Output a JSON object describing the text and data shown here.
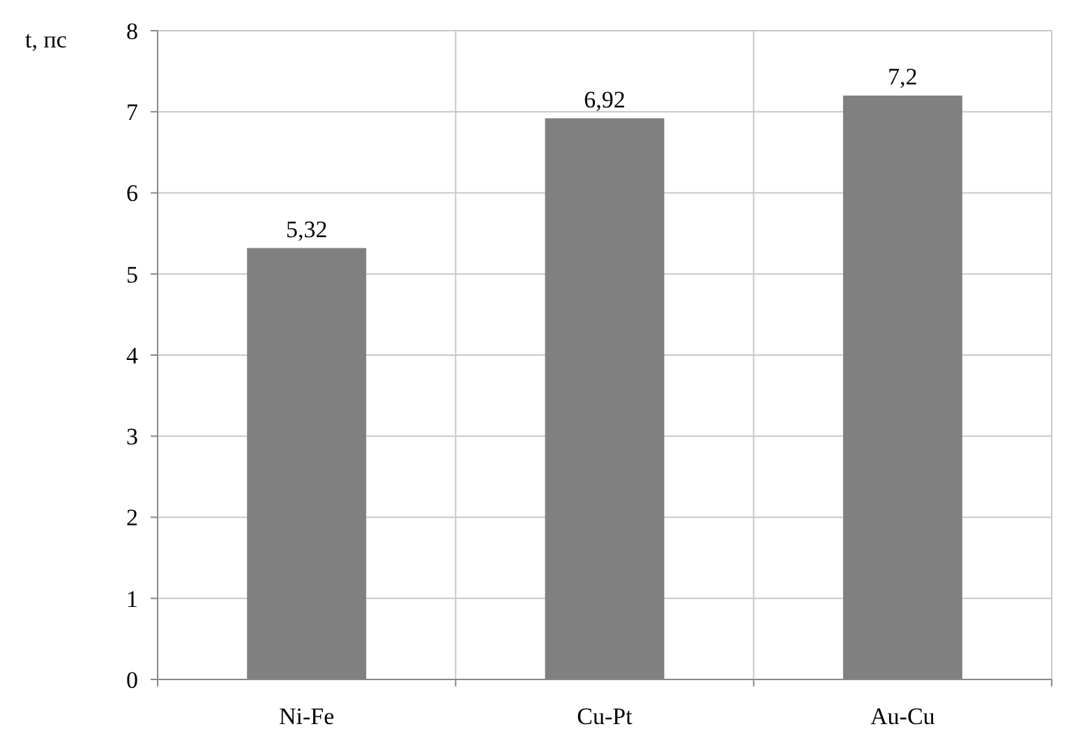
{
  "chart_data": {
    "type": "bar",
    "ylabel": "t, пс",
    "categories": [
      "Ni-Fe",
      "Cu-Pt",
      "Au-Cu"
    ],
    "values": [
      5.32,
      6.92,
      7.2
    ],
    "value_labels": [
      "5,32",
      "6,92",
      "7,2"
    ],
    "color": "#808080",
    "ylim": [
      0,
      8
    ],
    "yticks": [
      0,
      1,
      2,
      3,
      4,
      5,
      6,
      7,
      8
    ],
    "grid": true
  }
}
